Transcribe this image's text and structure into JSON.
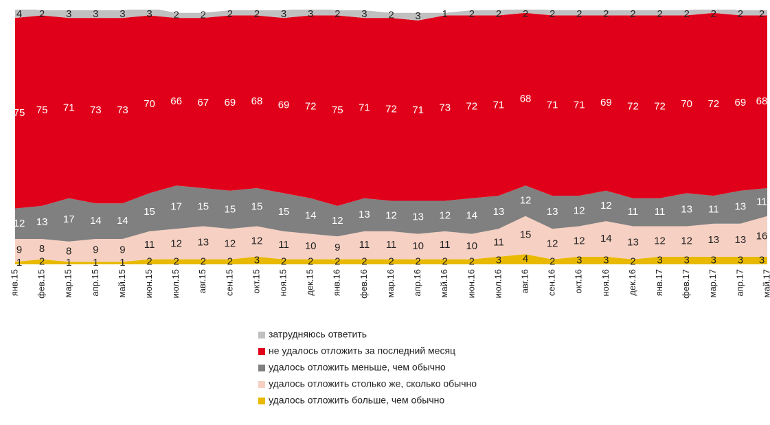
{
  "chart_data": {
    "type": "stacked_area",
    "categories": [
      "янв.15",
      "фев.15",
      "мар.15",
      "апр.15",
      "май.15",
      "июн.15",
      "июл.15",
      "авг.15",
      "сен.15",
      "окт.15",
      "ноя.15",
      "дек.15",
      "янв.16",
      "фев.16",
      "мар.16",
      "апр.16",
      "май.16",
      "июн.16",
      "июл.16",
      "авг.16",
      "сен.16",
      "окт.16",
      "ноя.16",
      "дек.16",
      "янв.17",
      "фев.17",
      "мар.17",
      "апр.17",
      "май.17"
    ],
    "ylim": [
      0,
      100
    ],
    "legend": "bottom",
    "series": [
      {
        "name": "удалось отложить больше, чем обычно",
        "color": "#e8b900",
        "values": [
          1,
          2,
          1,
          1,
          1,
          2,
          2,
          2,
          2,
          3,
          2,
          2,
          2,
          2,
          2,
          2,
          2,
          2,
          3,
          4,
          2,
          3,
          3,
          2,
          3,
          3,
          3,
          3,
          3
        ]
      },
      {
        "name": "удалось отложить столько же, сколько обычно",
        "color": "#f6d0c2",
        "values": [
          9,
          8,
          8,
          9,
          9,
          11,
          12,
          13,
          12,
          12,
          11,
          10,
          9,
          11,
          11,
          10,
          11,
          10,
          11,
          15,
          12,
          12,
          14,
          13,
          12,
          12,
          13,
          13,
          16
        ]
      },
      {
        "name": "удалось отложить меньше, чем обычно",
        "color": "#808080",
        "values": [
          12,
          13,
          17,
          14,
          14,
          15,
          17,
          15,
          15,
          15,
          15,
          14,
          12,
          13,
          12,
          13,
          12,
          14,
          13,
          12,
          13,
          12,
          12,
          11,
          11,
          13,
          11,
          13,
          11
        ]
      },
      {
        "name": "не удалось отложить за последний месяц",
        "color": "#e1001a",
        "values": [
          75,
          75,
          71,
          73,
          73,
          70,
          66,
          67,
          69,
          68,
          69,
          72,
          75,
          71,
          72,
          71,
          73,
          72,
          71,
          68,
          71,
          71,
          69,
          72,
          72,
          70,
          72,
          69,
          68
        ]
      },
      {
        "name": "затрудняюсь ответить",
        "color": "#c0c0c0",
        "values": [
          4,
          2,
          3,
          3,
          3,
          3,
          2,
          2,
          2,
          2,
          3,
          3,
          2,
          3,
          2,
          3,
          1,
          2,
          2,
          2,
          2,
          2,
          2,
          2,
          2,
          2,
          2,
          2,
          2
        ]
      }
    ]
  }
}
